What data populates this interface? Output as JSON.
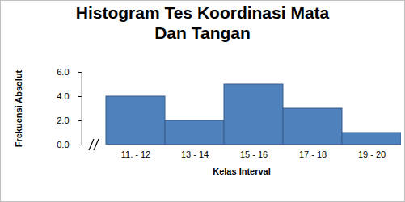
{
  "chart_data": {
    "type": "bar",
    "title": "Histogram Tes Koordinasi Mata Dan Tangan",
    "x_label": "Kelas Interval",
    "y_label": "Frekuensi Absolut",
    "categories": [
      "11. - 12",
      "13 - 14",
      "15 - 16",
      "17 - 18",
      "19 - 20"
    ],
    "values": [
      4,
      2,
      5,
      3,
      1
    ],
    "color": "#4f81bd",
    "ylim": [
      0,
      6
    ],
    "yticks": [
      0,
      2,
      4,
      6
    ],
    "grid": false
  }
}
